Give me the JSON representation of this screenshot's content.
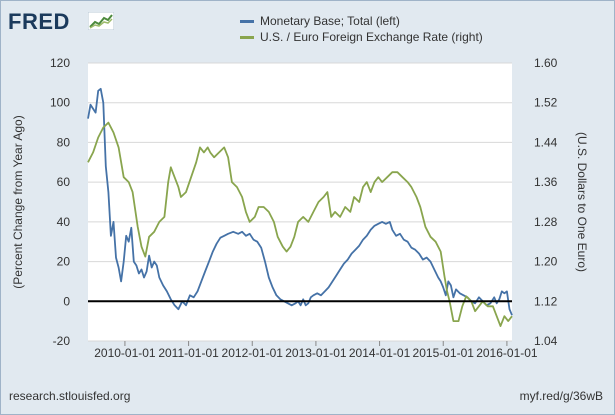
{
  "branding": {
    "logo_text": "FRED",
    "logo_icon": "chart-trend-icon",
    "source_url": "research.stlouisfed.org",
    "short_link": "myf.red/g/36wB"
  },
  "chart_data": {
    "type": "line",
    "title": "",
    "xlabel": "",
    "ylabel_left": "(Percent Change from Year Ago)",
    "ylabel_right": "(U.S. Dollars to One Euro)",
    "ylim_left": [
      -20,
      120
    ],
    "ylim_right": [
      1.04,
      1.6
    ],
    "yticks_left": [
      "-20",
      "0",
      "20",
      "40",
      "60",
      "80",
      "100",
      "120"
    ],
    "yticks_right": [
      "1.04",
      "1.12",
      "1.20",
      "1.28",
      "1.36",
      "1.44",
      "1.52",
      "1.60"
    ],
    "xlim": [
      2009.42,
      2016.08
    ],
    "xticks": [
      {
        "label": "2010-01-01",
        "x": 2010.0
      },
      {
        "label": "2011-01-01",
        "x": 2011.0
      },
      {
        "label": "2012-01-01",
        "x": 2012.0
      },
      {
        "label": "2013-01-01",
        "x": 2013.0
      },
      {
        "label": "2014-01-01",
        "x": 2014.0
      },
      {
        "label": "2015-01-01",
        "x": 2015.0
      },
      {
        "label": "2016-01-01",
        "x": 2016.0
      }
    ],
    "zero_line": true,
    "grid": "horizontal",
    "legend_position": "top",
    "series": [
      {
        "name": "Monetary Base; Total (left)",
        "axis": "left",
        "color": "#4572a7",
        "points": [
          [
            2009.42,
            92
          ],
          [
            2009.46,
            99
          ],
          [
            2009.5,
            97
          ],
          [
            2009.54,
            95
          ],
          [
            2009.58,
            106
          ],
          [
            2009.62,
            107
          ],
          [
            2009.66,
            100
          ],
          [
            2009.7,
            68
          ],
          [
            2009.74,
            55
          ],
          [
            2009.78,
            33
          ],
          [
            2009.82,
            40
          ],
          [
            2009.86,
            22
          ],
          [
            2009.9,
            17
          ],
          [
            2009.94,
            10
          ],
          [
            2009.98,
            20
          ],
          [
            2010.02,
            33
          ],
          [
            2010.06,
            30
          ],
          [
            2010.1,
            37
          ],
          [
            2010.14,
            20
          ],
          [
            2010.18,
            18
          ],
          [
            2010.22,
            14
          ],
          [
            2010.26,
            16
          ],
          [
            2010.3,
            12
          ],
          [
            2010.34,
            15
          ],
          [
            2010.38,
            23
          ],
          [
            2010.42,
            17
          ],
          [
            2010.46,
            20
          ],
          [
            2010.5,
            18
          ],
          [
            2010.54,
            12
          ],
          [
            2010.6,
            8
          ],
          [
            2010.66,
            5
          ],
          [
            2010.72,
            1
          ],
          [
            2010.78,
            -2
          ],
          [
            2010.84,
            -4
          ],
          [
            2010.9,
            0
          ],
          [
            2010.96,
            -2
          ],
          [
            2011.02,
            3
          ],
          [
            2011.08,
            2
          ],
          [
            2011.14,
            5
          ],
          [
            2011.2,
            10
          ],
          [
            2011.26,
            15
          ],
          [
            2011.32,
            20
          ],
          [
            2011.38,
            25
          ],
          [
            2011.44,
            29
          ],
          [
            2011.5,
            32
          ],
          [
            2011.56,
            33
          ],
          [
            2011.62,
            34
          ],
          [
            2011.7,
            35
          ],
          [
            2011.78,
            34
          ],
          [
            2011.84,
            35
          ],
          [
            2011.9,
            33
          ],
          [
            2011.96,
            34
          ],
          [
            2012.02,
            31
          ],
          [
            2012.08,
            30
          ],
          [
            2012.14,
            27
          ],
          [
            2012.2,
            20
          ],
          [
            2012.26,
            12
          ],
          [
            2012.32,
            7
          ],
          [
            2012.38,
            3
          ],
          [
            2012.44,
            1
          ],
          [
            2012.5,
            0
          ],
          [
            2012.56,
            -1
          ],
          [
            2012.62,
            -2
          ],
          [
            2012.68,
            -1
          ],
          [
            2012.72,
            0
          ],
          [
            2012.76,
            -2
          ],
          [
            2012.8,
            1
          ],
          [
            2012.84,
            -2
          ],
          [
            2012.88,
            -1
          ],
          [
            2012.92,
            2
          ],
          [
            2012.96,
            3
          ],
          [
            2013.02,
            4
          ],
          [
            2013.08,
            3
          ],
          [
            2013.14,
            5
          ],
          [
            2013.2,
            7
          ],
          [
            2013.26,
            10
          ],
          [
            2013.32,
            13
          ],
          [
            2013.38,
            16
          ],
          [
            2013.44,
            19
          ],
          [
            2013.5,
            21
          ],
          [
            2013.56,
            24
          ],
          [
            2013.62,
            26
          ],
          [
            2013.68,
            28
          ],
          [
            2013.74,
            31
          ],
          [
            2013.8,
            33
          ],
          [
            2013.86,
            36
          ],
          [
            2013.92,
            38
          ],
          [
            2013.98,
            39
          ],
          [
            2014.04,
            40
          ],
          [
            2014.1,
            39
          ],
          [
            2014.16,
            40
          ],
          [
            2014.2,
            36
          ],
          [
            2014.26,
            33
          ],
          [
            2014.32,
            34
          ],
          [
            2014.38,
            31
          ],
          [
            2014.44,
            30
          ],
          [
            2014.5,
            27
          ],
          [
            2014.56,
            26
          ],
          [
            2014.62,
            24
          ],
          [
            2014.68,
            21
          ],
          [
            2014.74,
            22
          ],
          [
            2014.8,
            20
          ],
          [
            2014.86,
            16
          ],
          [
            2014.92,
            12
          ],
          [
            2014.96,
            10
          ],
          [
            2015.0,
            7
          ],
          [
            2015.04,
            3
          ],
          [
            2015.08,
            10
          ],
          [
            2015.12,
            8
          ],
          [
            2015.16,
            2
          ],
          [
            2015.2,
            6
          ],
          [
            2015.26,
            4
          ],
          [
            2015.32,
            3
          ],
          [
            2015.38,
            2
          ],
          [
            2015.44,
            0
          ],
          [
            2015.5,
            -1
          ],
          [
            2015.56,
            2
          ],
          [
            2015.62,
            0
          ],
          [
            2015.68,
            -2
          ],
          [
            2015.74,
            -1
          ],
          [
            2015.8,
            2
          ],
          [
            2015.84,
            -1
          ],
          [
            2015.88,
            1
          ],
          [
            2015.92,
            5
          ],
          [
            2015.96,
            4
          ],
          [
            2016.0,
            5
          ],
          [
            2016.04,
            -4
          ],
          [
            2016.08,
            -7
          ]
        ]
      },
      {
        "name": "U.S. / Euro Foreign Exchange Rate (right)",
        "axis": "right",
        "color": "#89a54e",
        "points": [
          [
            2009.42,
            1.4
          ],
          [
            2009.5,
            1.42
          ],
          [
            2009.58,
            1.45
          ],
          [
            2009.66,
            1.47
          ],
          [
            2009.74,
            1.48
          ],
          [
            2009.82,
            1.46
          ],
          [
            2009.9,
            1.43
          ],
          [
            2009.98,
            1.37
          ],
          [
            2010.06,
            1.36
          ],
          [
            2010.12,
            1.34
          ],
          [
            2010.2,
            1.27
          ],
          [
            2010.26,
            1.23
          ],
          [
            2010.32,
            1.21
          ],
          [
            2010.38,
            1.25
          ],
          [
            2010.46,
            1.26
          ],
          [
            2010.54,
            1.28
          ],
          [
            2010.62,
            1.29
          ],
          [
            2010.68,
            1.36
          ],
          [
            2010.72,
            1.39
          ],
          [
            2010.78,
            1.37
          ],
          [
            2010.84,
            1.35
          ],
          [
            2010.88,
            1.33
          ],
          [
            2010.96,
            1.34
          ],
          [
            2011.04,
            1.37
          ],
          [
            2011.12,
            1.4
          ],
          [
            2011.18,
            1.43
          ],
          [
            2011.24,
            1.42
          ],
          [
            2011.3,
            1.43
          ],
          [
            2011.34,
            1.42
          ],
          [
            2011.4,
            1.41
          ],
          [
            2011.48,
            1.42
          ],
          [
            2011.56,
            1.43
          ],
          [
            2011.62,
            1.41
          ],
          [
            2011.68,
            1.36
          ],
          [
            2011.76,
            1.35
          ],
          [
            2011.84,
            1.33
          ],
          [
            2011.9,
            1.3
          ],
          [
            2011.96,
            1.28
          ],
          [
            2012.04,
            1.29
          ],
          [
            2012.1,
            1.31
          ],
          [
            2012.18,
            1.31
          ],
          [
            2012.26,
            1.3
          ],
          [
            2012.34,
            1.28
          ],
          [
            2012.4,
            1.25
          ],
          [
            2012.48,
            1.23
          ],
          [
            2012.54,
            1.22
          ],
          [
            2012.6,
            1.23
          ],
          [
            2012.66,
            1.25
          ],
          [
            2012.72,
            1.28
          ],
          [
            2012.8,
            1.29
          ],
          [
            2012.88,
            1.28
          ],
          [
            2012.96,
            1.3
          ],
          [
            2013.04,
            1.32
          ],
          [
            2013.12,
            1.33
          ],
          [
            2013.18,
            1.34
          ],
          [
            2013.24,
            1.29
          ],
          [
            2013.3,
            1.3
          ],
          [
            2013.38,
            1.29
          ],
          [
            2013.46,
            1.31
          ],
          [
            2013.54,
            1.3
          ],
          [
            2013.6,
            1.33
          ],
          [
            2013.68,
            1.32
          ],
          [
            2013.74,
            1.35
          ],
          [
            2013.8,
            1.36
          ],
          [
            2013.86,
            1.34
          ],
          [
            2013.92,
            1.36
          ],
          [
            2013.98,
            1.37
          ],
          [
            2014.04,
            1.36
          ],
          [
            2014.12,
            1.37
          ],
          [
            2014.2,
            1.38
          ],
          [
            2014.28,
            1.38
          ],
          [
            2014.36,
            1.37
          ],
          [
            2014.44,
            1.36
          ],
          [
            2014.5,
            1.35
          ],
          [
            2014.58,
            1.33
          ],
          [
            2014.64,
            1.31
          ],
          [
            2014.72,
            1.27
          ],
          [
            2014.8,
            1.25
          ],
          [
            2014.88,
            1.24
          ],
          [
            2014.96,
            1.22
          ],
          [
            2015.02,
            1.17
          ],
          [
            2015.06,
            1.14
          ],
          [
            2015.1,
            1.12
          ],
          [
            2015.16,
            1.08
          ],
          [
            2015.24,
            1.08
          ],
          [
            2015.3,
            1.11
          ],
          [
            2015.36,
            1.13
          ],
          [
            2015.44,
            1.12
          ],
          [
            2015.5,
            1.1
          ],
          [
            2015.56,
            1.11
          ],
          [
            2015.62,
            1.12
          ],
          [
            2015.7,
            1.11
          ],
          [
            2015.78,
            1.11
          ],
          [
            2015.84,
            1.09
          ],
          [
            2015.9,
            1.07
          ],
          [
            2015.96,
            1.09
          ],
          [
            2016.02,
            1.08
          ],
          [
            2016.08,
            1.09
          ]
        ]
      }
    ]
  }
}
